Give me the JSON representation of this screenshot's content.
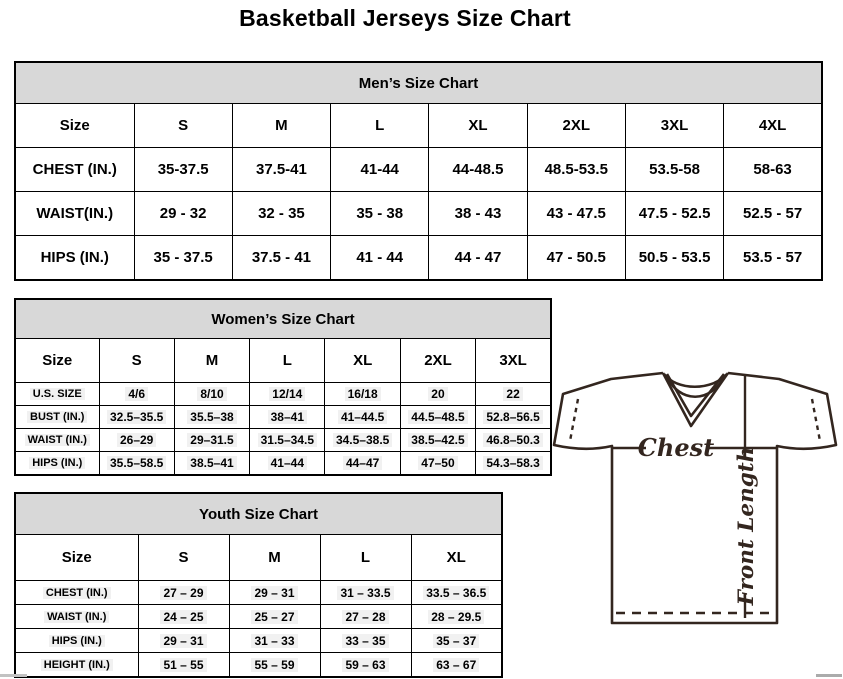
{
  "title": "Basketball Jerseys Size Chart",
  "tables": {
    "mens": {
      "title": "Men’s Size Chart",
      "columns": [
        "Size",
        "S",
        "M",
        "L",
        "XL",
        "2XL",
        "3XL",
        "4XL"
      ],
      "rows": [
        {
          "label": "CHEST (IN.)",
          "values": [
            "35-37.5",
            "37.5-41",
            "41-44",
            "44-48.5",
            "48.5-53.5",
            "53.5-58",
            "58-63"
          ]
        },
        {
          "label": "WAIST(IN.)",
          "values": [
            "29 - 32",
            "32 - 35",
            "35 - 38",
            "38 - 43",
            "43 - 47.5",
            "47.5 - 52.5",
            "52.5 - 57"
          ]
        },
        {
          "label": "HIPS (IN.)",
          "values": [
            "35 - 37.5",
            "37.5 - 41",
            "41 - 44",
            "44 - 47",
            "47 - 50.5",
            "50.5 - 53.5",
            "53.5 - 57"
          ]
        }
      ]
    },
    "womens": {
      "title": "Women’s Size Chart",
      "columns": [
        "Size",
        "S",
        "M",
        "L",
        "XL",
        "2XL",
        "3XL"
      ],
      "rows": [
        {
          "label": "U.S. SIZE",
          "values": [
            "4/6",
            "8/10",
            "12/14",
            "16/18",
            "20",
            "22"
          ]
        },
        {
          "label": "BUST (IN.)",
          "values": [
            "32.5–35.5",
            "35.5–38",
            "38–41",
            "41–44.5",
            "44.5–48.5",
            "52.8–56.5"
          ]
        },
        {
          "label": "WAIST (IN.)",
          "values": [
            "26–29",
            "29–31.5",
            "31.5–34.5",
            "34.5–38.5",
            "38.5–42.5",
            "46.8–50.3"
          ]
        },
        {
          "label": "HIPS (IN.)",
          "values": [
            "35.5–58.5",
            "38.5–41",
            "41–44",
            "44–47",
            "47–50",
            "54.3–58.3"
          ]
        }
      ]
    },
    "youth": {
      "title": "Youth Size Chart",
      "columns": [
        "Size",
        "S",
        "M",
        "L",
        "XL"
      ],
      "rows": [
        {
          "label": "CHEST (IN.)",
          "values": [
            "27 – 29",
            "29 – 31",
            "31 – 33.5",
            "33.5 – 36.5"
          ]
        },
        {
          "label": "WAIST (IN.)",
          "values": [
            "24 – 25",
            "25 – 27",
            "27 – 28",
            "28 – 29.5"
          ]
        },
        {
          "label": "HIPS (IN.)",
          "values": [
            "29 – 31",
            "31 – 33",
            "33 – 35",
            "35 – 37"
          ]
        },
        {
          "label": "HEIGHT (IN.)",
          "values": [
            "51 – 55",
            "55 – 59",
            "59 – 63",
            "63 – 67"
          ]
        }
      ]
    }
  },
  "diagram": {
    "chest_label": "Chest",
    "front_length_label": "Front Length"
  },
  "colors": {
    "banner_bg": "#d8d8d8",
    "table_border": "#000000",
    "jersey_stroke": "#33261f"
  }
}
